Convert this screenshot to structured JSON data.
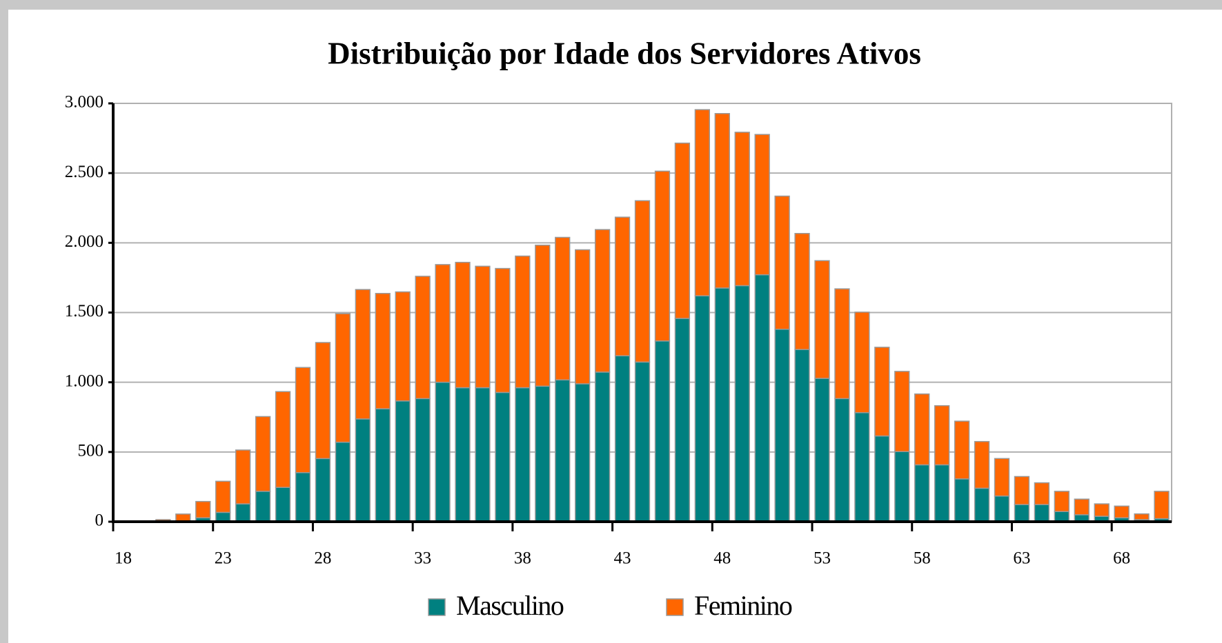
{
  "chart_data": {
    "type": "bar",
    "stacked": true,
    "title": "Distribuição por Idade dos Servidores Ativos",
    "categories": [
      "18",
      null,
      null,
      null,
      null,
      "23",
      null,
      null,
      null,
      null,
      "28",
      null,
      null,
      null,
      null,
      "33",
      null,
      null,
      null,
      null,
      "38",
      null,
      null,
      null,
      null,
      "43",
      null,
      null,
      null,
      null,
      "48",
      null,
      null,
      null,
      null,
      "53",
      null,
      null,
      null,
      null,
      "58",
      null,
      null,
      null,
      null,
      "63",
      null,
      null,
      null,
      null,
      "68",
      null,
      null
    ],
    "series": [
      {
        "name": "Masculino",
        "color": "#008080",
        "values": [
          0,
          0,
          5,
          5,
          28,
          67,
          128,
          218,
          246,
          352,
          453,
          570,
          737,
          810,
          866,
          883,
          1000,
          961,
          961,
          927,
          961,
          972,
          1017,
          989,
          1073,
          1190,
          1145,
          1296,
          1458,
          1620,
          1676,
          1693,
          1771,
          1380,
          1235,
          1028,
          883,
          782,
          615,
          503,
          408,
          408,
          307,
          240,
          184,
          123,
          123,
          73,
          50,
          39,
          28,
          15,
          22
        ]
      },
      {
        "name": "Feminino",
        "color": "#ff6600",
        "values": [
          0,
          0,
          10,
          50,
          117,
          223,
          386,
          536,
          687,
          754,
          832,
          922,
          928,
          827,
          782,
          877,
          844,
          899,
          871,
          889,
          944,
          1011,
          1022,
          961,
          1022,
          994,
          1157,
          1218,
          1257,
          1335,
          1251,
          1100,
          1006,
          955,
          832,
          844,
          787,
          721,
          636,
          575,
          508,
          424,
          414,
          335,
          269,
          201,
          156,
          145,
          112,
          89,
          84,
          41,
          196
        ]
      }
    ],
    "ylim": [
      0,
      3000
    ],
    "yticks": [
      0,
      500,
      {
        "value": 1000,
        "label": "1.000"
      },
      {
        "value": 1500,
        "label": "1.500"
      },
      {
        "value": 2000,
        "label": "2.000"
      },
      {
        "value": 2500,
        "label": "2.500"
      },
      {
        "value": 3000,
        "label": "3.000"
      }
    ],
    "grid": true,
    "legend": "bottom"
  }
}
